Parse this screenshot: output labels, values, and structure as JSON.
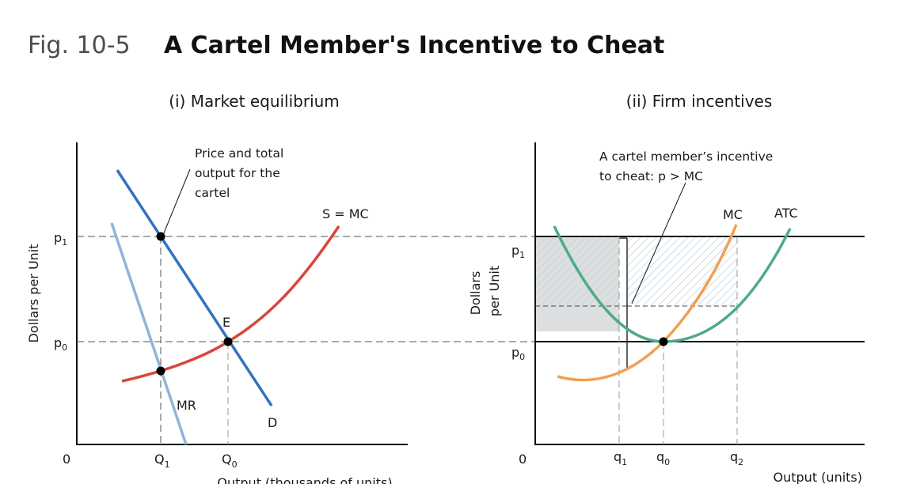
{
  "header": {
    "figure_number": "Fig. 10-5",
    "title": "A Cartel Member's Incentive to Cheat"
  },
  "colors": {
    "demand": "#2f74c0",
    "marginal_revenue": "#8fb4dd",
    "supply_mc_market": "#d9453b",
    "firm_mc": "#f0a053",
    "firm_atc": "#4faa86",
    "shaded_area": "#dcdedf",
    "hatch_area": "#a7c6d6"
  },
  "left_panel": {
    "title": "(i) Market equilibrium",
    "y_axis_label": "Dollars per Unit",
    "x_axis_label": "Output (thousands of units)",
    "origin_label": "0",
    "p1_label": "p",
    "p1_sub": "1",
    "p0_label": "p",
    "p0_sub": "0",
    "Q1_label": "Q",
    "Q1_sub": "1",
    "Q0_label": "Q",
    "Q0_sub": "0",
    "demand_label": "D",
    "mr_label": "MR",
    "supply_label": "S = MC",
    "equilibrium_label": "E",
    "annotation_lines": [
      "Price and total",
      "output for the",
      "cartel"
    ]
  },
  "right_panel": {
    "title": "(ii) Firm incentives",
    "y_axis_label_lines": [
      "Dollars",
      "per Unit"
    ],
    "x_axis_label": "Output (units)",
    "origin_label": "0",
    "p1_label": "p",
    "p1_sub": "1",
    "p0_label": "p",
    "p0_sub": "0",
    "q1_label": "q",
    "q1_sub": "1",
    "q0_label": "q",
    "q0_sub": "0",
    "q2_label": "q",
    "q2_sub": "2",
    "mc_label": "MC",
    "atc_label": "ATC",
    "annotation_lines": [
      "A cartel member’s incentive",
      "to cheat: p > MC"
    ]
  }
}
